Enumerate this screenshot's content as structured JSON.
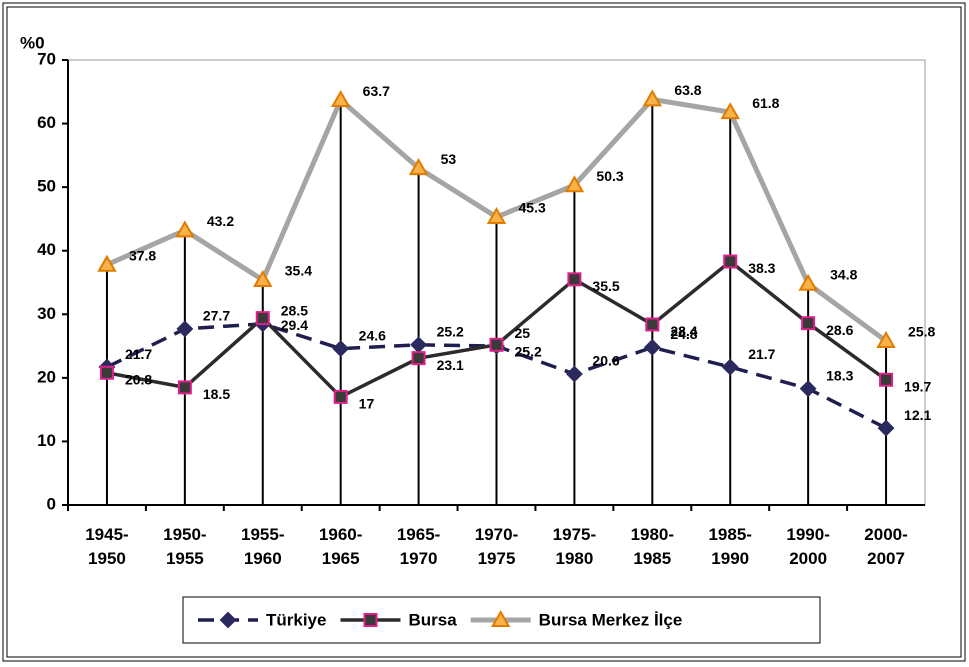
{
  "chart_data": {
    "type": "line",
    "ylabel": "%0",
    "categories": [
      "1945-\n1950",
      "1950-\n1955",
      "1955-\n1960",
      "1960-\n1965",
      "1965-\n1970",
      "1970-\n1975",
      "1975-\n1980",
      "1980-\n1985",
      "1985-\n1990",
      "1990-\n2000",
      "2000-\n2007"
    ],
    "series": [
      {
        "name": "Türkiye",
        "color": "#1f1f4f",
        "dash": "16,9",
        "marker": "diamond",
        "marker_fill": "#2a2a5e",
        "marker_stroke": "#2a2a5e",
        "values": [
          21.7,
          27.7,
          28.5,
          24.6,
          25.2,
          25,
          20.6,
          24.8,
          21.7,
          18.3,
          12.1
        ]
      },
      {
        "name": "Bursa",
        "color": "#2b2b2b",
        "marker": "square",
        "marker_fill": "#3a3a3a",
        "marker_stroke": "#e0208a",
        "values": [
          20.8,
          18.5,
          29.4,
          17,
          23.1,
          25.2,
          35.5,
          28.4,
          38.3,
          28.6,
          19.7
        ]
      },
      {
        "name": "Bursa Merkez İlçe",
        "color": "#a5a5a5",
        "marker": "triangle",
        "marker_fill": "#f7b24a",
        "marker_stroke": "#e07b00",
        "values": [
          37.8,
          43.2,
          35.4,
          63.7,
          53,
          45.3,
          50.3,
          63.8,
          61.8,
          34.8,
          25.8
        ]
      }
    ],
    "drop_lines": true,
    "ylim": [
      0,
      70
    ],
    "yticks": [
      0,
      10,
      20,
      30,
      40,
      50,
      60,
      70
    ],
    "legend": "bottom"
  }
}
